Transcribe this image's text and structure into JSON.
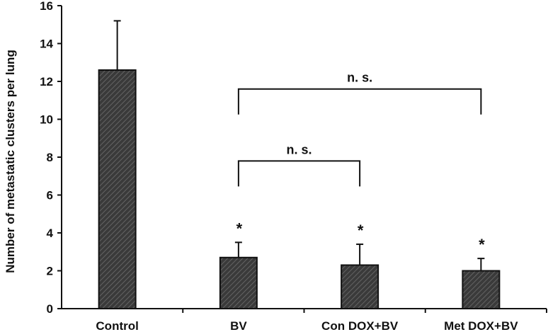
{
  "chart_data": {
    "type": "bar",
    "title": "",
    "xlabel": "",
    "ylabel": "Number of metastatic clusters per lung",
    "ylim": [
      0,
      16
    ],
    "yticks": [
      0,
      2,
      4,
      6,
      8,
      10,
      12,
      14,
      16
    ],
    "ytick_labels": [
      "0",
      "2",
      "4",
      "6",
      "8",
      "10",
      "12",
      "14",
      "16"
    ],
    "categories": [
      "Control",
      "BV",
      "Con DOX+BV",
      "Met DOX+BV"
    ],
    "values": [
      12.6,
      2.7,
      2.3,
      2.0
    ],
    "error_upper": [
      2.6,
      0.8,
      1.1,
      0.65
    ],
    "significance_markers": [
      "",
      "*",
      "*",
      "*"
    ],
    "comparisons": [
      {
        "from": "BV",
        "to": "Con DOX+BV",
        "label": "n. s.",
        "y": 7.8
      },
      {
        "from": "BV",
        "to": "Met DOX+BV",
        "label": "n. s.",
        "y": 11.6
      }
    ],
    "grid": false,
    "colors": {
      "bar_fill": "#3a3a3a",
      "bar_hatch": "#6e6e6e",
      "ink": "#111111"
    }
  }
}
